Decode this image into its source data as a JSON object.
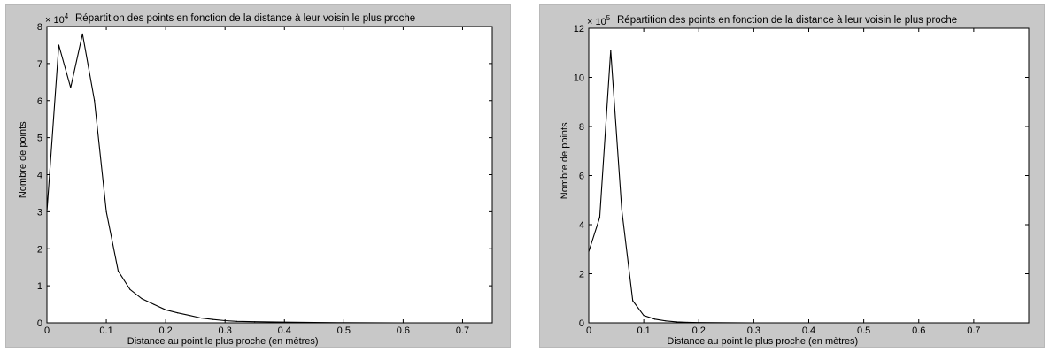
{
  "chart_data": [
    {
      "type": "line",
      "title": "Répartition des points en fonction de la distance à leur voisin le plus proche",
      "xlabel": "Distance au point le plus proche (en mètres)",
      "ylabel": "Nombre de points",
      "y_multiplier": "× 10",
      "y_exponent": "4",
      "xlim": [
        0,
        0.75
      ],
      "ylim": [
        0,
        8
      ],
      "grid": false,
      "xticks": [
        "0",
        "0.1",
        "0.2",
        "0.3",
        "0.4",
        "0.5",
        "0.6",
        "0.7"
      ],
      "yticks": [
        "0",
        "1",
        "2",
        "3",
        "4",
        "5",
        "6",
        "7",
        "8"
      ],
      "series": [
        {
          "x": [
            0,
            0.02,
            0.04,
            0.06,
            0.08,
            0.1,
            0.12,
            0.14,
            0.16,
            0.18,
            0.2,
            0.22,
            0.24,
            0.26,
            0.28,
            0.3,
            0.32,
            0.35,
            0.4,
            0.45,
            0.5,
            0.6,
            0.75
          ],
          "y": [
            3.0,
            7.5,
            6.35,
            7.8,
            6.0,
            3.0,
            1.4,
            0.9,
            0.65,
            0.5,
            0.35,
            0.27,
            0.2,
            0.13,
            0.09,
            0.06,
            0.04,
            0.03,
            0.02,
            0.01,
            0.005,
            0.0,
            0.0
          ]
        }
      ]
    },
    {
      "type": "line",
      "title": "Répartition des points en fonction de la distance à leur voisin le plus proche",
      "xlabel": "Distance au point le plus proche (en mètres)",
      "ylabel": "Nombre de points",
      "y_multiplier": "× 10",
      "y_exponent": "5",
      "xlim": [
        0,
        0.8
      ],
      "ylim": [
        0,
        12
      ],
      "grid": false,
      "xticks": [
        "0",
        "0.1",
        "0.2",
        "0.3",
        "0.4",
        "0.5",
        "0.6",
        "0.7"
      ],
      "yticks": [
        "0",
        "2",
        "4",
        "6",
        "8",
        "10",
        "12"
      ],
      "series": [
        {
          "x": [
            0,
            0.02,
            0.04,
            0.06,
            0.08,
            0.1,
            0.12,
            0.14,
            0.16,
            0.18,
            0.2,
            0.3,
            0.5,
            0.8
          ],
          "y": [
            2.9,
            4.3,
            11.1,
            4.6,
            0.9,
            0.3,
            0.15,
            0.08,
            0.04,
            0.02,
            0.01,
            0.0,
            0.0,
            0.0
          ]
        }
      ]
    }
  ]
}
